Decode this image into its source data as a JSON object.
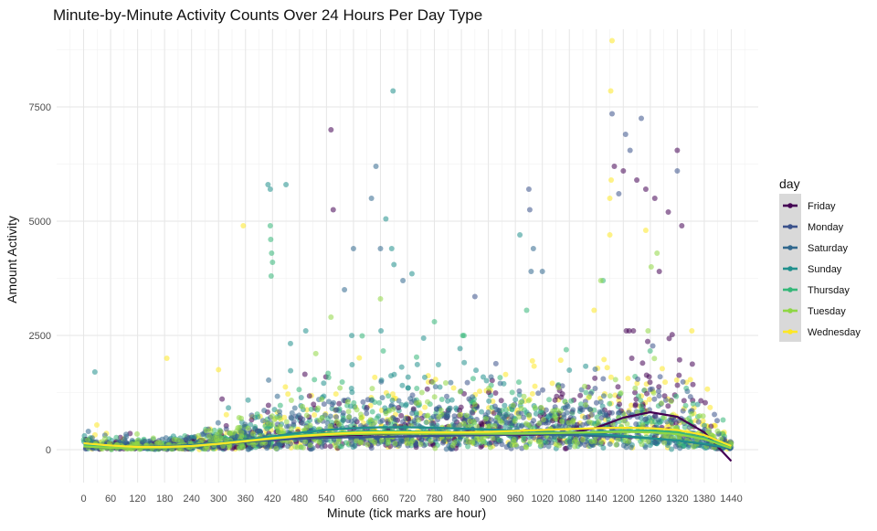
{
  "chart_data": {
    "type": "scatter",
    "title": "Minute-by-Minute Activity Counts Over 24 Hours Per Day Type",
    "xlabel": "Minute (tick marks are hour)",
    "ylabel": "Amount Activity",
    "xlim": [
      -60,
      1500
    ],
    "ylim": [
      -720,
      9200
    ],
    "xticks": [
      0,
      60,
      120,
      180,
      240,
      300,
      360,
      420,
      480,
      540,
      600,
      660,
      720,
      780,
      840,
      900,
      960,
      1020,
      1080,
      1140,
      1200,
      1260,
      1320,
      1380,
      1440
    ],
    "yticks": [
      0,
      2500,
      5000,
      7500
    ],
    "grid": true,
    "legend": {
      "title": "day",
      "placement": "right"
    },
    "series": [
      {
        "name": "Friday",
        "color": "#440154",
        "smooth_x": [
          0,
          60,
          120,
          180,
          240,
          300,
          360,
          420,
          480,
          540,
          600,
          660,
          720,
          780,
          840,
          900,
          960,
          1020,
          1080,
          1140,
          1200,
          1260,
          1320,
          1380,
          1440
        ],
        "smooth_y": [
          80,
          40,
          30,
          40,
          70,
          120,
          170,
          220,
          260,
          300,
          320,
          340,
          350,
          350,
          340,
          330,
          320,
          330,
          360,
          480,
          700,
          820,
          720,
          380,
          -250
        ],
        "outliers": [
          [
            550,
            7000
          ],
          [
            555,
            5250
          ],
          [
            1180,
            6200
          ],
          [
            1200,
            6100
          ],
          [
            1230,
            5900
          ],
          [
            1250,
            5700
          ],
          [
            1270,
            5500
          ],
          [
            1300,
            5200
          ],
          [
            1320,
            6550
          ],
          [
            1330,
            4900
          ],
          [
            1280,
            3900
          ]
        ]
      },
      {
        "name": "Monday",
        "color": "#3b528b",
        "smooth_x": [
          0,
          60,
          120,
          180,
          240,
          300,
          360,
          420,
          480,
          540,
          600,
          660,
          720,
          780,
          840,
          900,
          960,
          1020,
          1080,
          1140,
          1200,
          1260,
          1320,
          1380,
          1440
        ],
        "smooth_y": [
          60,
          40,
          30,
          40,
          70,
          120,
          170,
          210,
          240,
          260,
          270,
          280,
          290,
          300,
          310,
          320,
          330,
          340,
          350,
          370,
          390,
          400,
          360,
          250,
          30
        ],
        "outliers": [
          [
            1175,
            7350
          ],
          [
            1240,
            7250
          ],
          [
            1205,
            6900
          ],
          [
            1215,
            6550
          ],
          [
            990,
            5700
          ],
          [
            992,
            5250
          ],
          [
            1320,
            6100
          ],
          [
            1190,
            5600
          ],
          [
            870,
            3350
          ]
        ]
      },
      {
        "name": "Saturday",
        "color": "#31688e",
        "smooth_x": [
          0,
          60,
          120,
          180,
          240,
          300,
          360,
          420,
          480,
          540,
          600,
          660,
          720,
          780,
          840,
          900,
          960,
          1020,
          1080,
          1140,
          1200,
          1260,
          1320,
          1380,
          1440
        ],
        "smooth_y": [
          120,
          80,
          60,
          70,
          100,
          140,
          190,
          240,
          290,
          330,
          360,
          380,
          390,
          390,
          380,
          370,
          360,
          340,
          320,
          300,
          280,
          250,
          200,
          120,
          20
        ],
        "outliers": [
          [
            650,
            6200
          ],
          [
            640,
            5500
          ],
          [
            660,
            4400
          ],
          [
            600,
            4400
          ],
          [
            1000,
            4400
          ],
          [
            710,
            3700
          ],
          [
            580,
            3500
          ],
          [
            995,
            3900
          ],
          [
            1020,
            3900
          ]
        ]
      },
      {
        "name": "Sunday",
        "color": "#21908d",
        "smooth_x": [
          0,
          60,
          120,
          180,
          240,
          300,
          360,
          420,
          480,
          540,
          600,
          660,
          720,
          780,
          840,
          900,
          960,
          1020,
          1080,
          1140,
          1200,
          1260,
          1320,
          1380,
          1440
        ],
        "smooth_y": [
          100,
          60,
          50,
          60,
          90,
          140,
          210,
          290,
          370,
          430,
          470,
          490,
          490,
          480,
          460,
          440,
          420,
          400,
          370,
          340,
          300,
          250,
          200,
          130,
          40
        ],
        "outliers": [
          [
            688,
            7850
          ],
          [
            450,
            5800
          ],
          [
            410,
            5800
          ],
          [
            415,
            5700
          ],
          [
            672,
            5050
          ],
          [
            685,
            4400
          ],
          [
            970,
            4700
          ],
          [
            690,
            4050
          ],
          [
            730,
            3850
          ],
          [
            25,
            1700
          ]
        ]
      },
      {
        "name": "Thursday",
        "color": "#35b779",
        "smooth_x": [
          0,
          60,
          120,
          180,
          240,
          300,
          360,
          420,
          480,
          540,
          600,
          660,
          720,
          780,
          840,
          900,
          960,
          1020,
          1080,
          1140,
          1200,
          1260,
          1320,
          1380,
          1440
        ],
        "smooth_y": [
          90,
          50,
          40,
          50,
          80,
          130,
          190,
          260,
          320,
          360,
          390,
          400,
          400,
          390,
          380,
          370,
          360,
          360,
          370,
          390,
          410,
          420,
          380,
          260,
          40
        ],
        "outliers": [
          [
            415,
            4900
          ],
          [
            416,
            4600
          ],
          [
            418,
            4300
          ],
          [
            420,
            4100
          ],
          [
            417,
            3800
          ],
          [
            1155,
            3700
          ],
          [
            985,
            3050
          ],
          [
            780,
            2800
          ]
        ]
      },
      {
        "name": "Tuesday",
        "color": "#8fd744",
        "smooth_x": [
          0,
          60,
          120,
          180,
          240,
          300,
          360,
          420,
          480,
          540,
          600,
          660,
          720,
          780,
          840,
          900,
          960,
          1020,
          1080,
          1140,
          1200,
          1260,
          1320,
          1380,
          1440
        ],
        "smooth_y": [
          70,
          40,
          30,
          40,
          70,
          120,
          180,
          240,
          290,
          320,
          340,
          350,
          350,
          350,
          350,
          350,
          350,
          360,
          370,
          380,
          390,
          380,
          340,
          230,
          30
        ],
        "outliers": [
          [
            1262,
            4000
          ],
          [
            1150,
            3700
          ],
          [
            660,
            3300
          ],
          [
            550,
            2900
          ],
          [
            1275,
            4300
          ]
        ]
      },
      {
        "name": "Wednesday",
        "color": "#fde725",
        "smooth_x": [
          0,
          60,
          120,
          180,
          240,
          300,
          360,
          420,
          480,
          540,
          600,
          660,
          720,
          780,
          840,
          900,
          960,
          1020,
          1080,
          1140,
          1200,
          1260,
          1320,
          1380,
          1440
        ],
        "smooth_y": [
          140,
          90,
          60,
          60,
          80,
          130,
          190,
          250,
          300,
          340,
          370,
          380,
          380,
          380,
          380,
          390,
          410,
          430,
          450,
          470,
          480,
          470,
          430,
          320,
          80
        ],
        "outliers": [
          [
            1175,
            8950
          ],
          [
            1172,
            7850
          ],
          [
            1173,
            5900
          ],
          [
            1170,
            5500
          ],
          [
            1170,
            4700
          ],
          [
            355,
            4900
          ],
          [
            1250,
            4800
          ],
          [
            185,
            2000
          ],
          [
            1135,
            3050
          ],
          [
            300,
            1750
          ]
        ]
      }
    ]
  }
}
